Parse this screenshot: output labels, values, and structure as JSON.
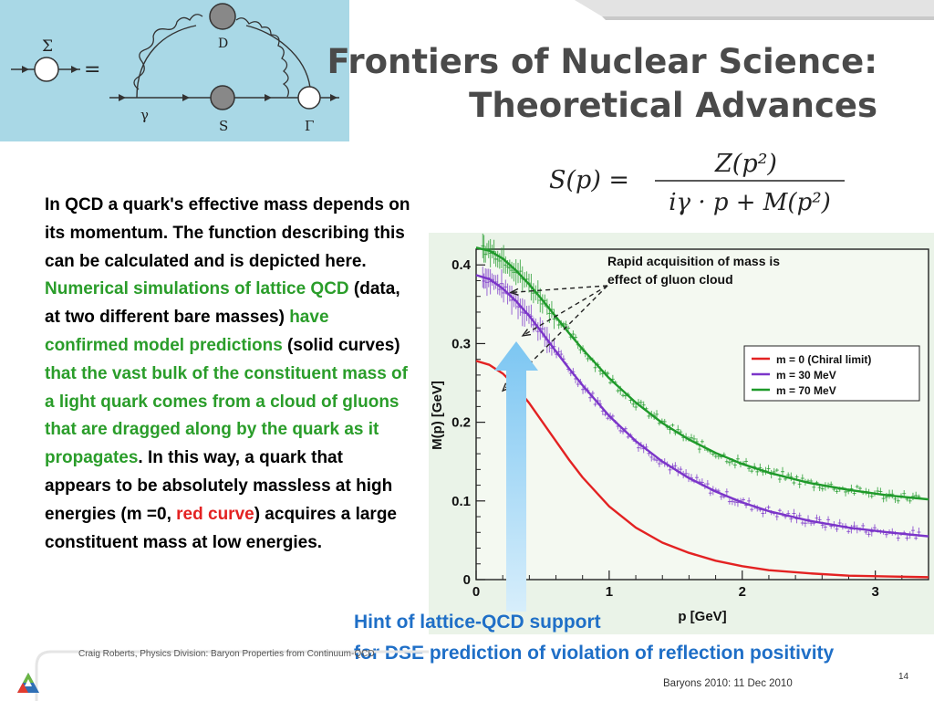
{
  "slide": {
    "title_line1": "Frontiers of Nuclear Science:",
    "title_line2": "Theoretical Advances",
    "page_number": "14",
    "footer_credit": "Craig Roberts, Physics Division: Baryon Properties from Continuum-QCD",
    "footer_event": "Baryons 2010: 11 Dec 2010"
  },
  "diagram": {
    "sigma": "Σ",
    "equals": "=",
    "d": "D",
    "gamma": "γ",
    "s": "S",
    "vertex": "Γ"
  },
  "formula": {
    "lhs": "S(p) =",
    "numerator": "Z(p²)",
    "denominator": "iγ · p + M(p²)"
  },
  "body": {
    "p1": "In QCD a quark's effective mass depends on its momentum. The function describing this can be calculated and is depicted here. ",
    "p2_green": "Numerical simulations of lattice QCD",
    "p3": " (data, at two different bare masses) ",
    "p4_green": "have confirmed model predictions",
    "p5": " (solid curves) ",
    "p6_green": "that the vast bulk of the constituent mass of a light quark comes from a cloud of gluons that are dragged along by the quark as it propagates",
    "p7": ". In this way, a quark that appears to be absolutely massless at high energies (m =0, ",
    "p8_red": "red curve",
    "p9": ") acquires a large constituent mass at low energies."
  },
  "hint": {
    "line1": "Hint of lattice-QCD support",
    "line2": "for DSE prediction of violation of reflection positivity"
  },
  "colors": {
    "red": "#e32222",
    "purple": "#7b35c9",
    "green": "#1f9a2a",
    "hint_blue": "#1f6fc7",
    "panel": "#a9d8e6"
  },
  "chart_data": {
    "type": "line",
    "xlabel": "p [GeV]",
    "ylabel": "M(p) [GeV]",
    "xlim": [
      0,
      3.4
    ],
    "ylim": [
      0,
      0.42
    ],
    "xticks": [
      "0",
      "1",
      "2",
      "3"
    ],
    "yticks": [
      "0",
      "0.1",
      "0.2",
      "0.3",
      "0.4"
    ],
    "annotation": "Rapid acquisition of mass is effect of gluon cloud",
    "legend_position": "right",
    "series": [
      {
        "name": "m = 0 (Chiral limit)",
        "color": "#e32222",
        "x": [
          0,
          0.1,
          0.2,
          0.3,
          0.4,
          0.5,
          0.6,
          0.7,
          0.8,
          1.0,
          1.2,
          1.4,
          1.6,
          1.8,
          2.0,
          2.2,
          2.5,
          2.8,
          3.1,
          3.4
        ],
        "y": [
          0.278,
          0.273,
          0.262,
          0.245,
          0.224,
          0.2,
          0.176,
          0.152,
          0.13,
          0.093,
          0.066,
          0.047,
          0.034,
          0.024,
          0.017,
          0.012,
          0.008,
          0.005,
          0.004,
          0.003
        ]
      },
      {
        "name": "m = 30 MeV",
        "color": "#7b35c9",
        "x": [
          0,
          0.1,
          0.2,
          0.3,
          0.4,
          0.5,
          0.6,
          0.7,
          0.8,
          1.0,
          1.2,
          1.4,
          1.6,
          1.8,
          2.0,
          2.2,
          2.5,
          2.8,
          3.1,
          3.4
        ],
        "y": [
          0.387,
          0.382,
          0.37,
          0.354,
          0.335,
          0.313,
          0.29,
          0.268,
          0.247,
          0.208,
          0.176,
          0.15,
          0.129,
          0.112,
          0.098,
          0.087,
          0.075,
          0.066,
          0.06,
          0.055
        ]
      },
      {
        "name": "m = 70 MeV",
        "color": "#1f9a2a",
        "x": [
          0,
          0.1,
          0.2,
          0.3,
          0.4,
          0.5,
          0.6,
          0.7,
          0.8,
          1.0,
          1.2,
          1.4,
          1.6,
          1.8,
          2.0,
          2.2,
          2.5,
          2.8,
          3.1,
          3.4
        ],
        "y": [
          0.422,
          0.418,
          0.408,
          0.393,
          0.375,
          0.355,
          0.334,
          0.313,
          0.293,
          0.256,
          0.225,
          0.199,
          0.178,
          0.161,
          0.147,
          0.136,
          0.123,
          0.114,
          0.107,
          0.102
        ]
      }
    ]
  }
}
